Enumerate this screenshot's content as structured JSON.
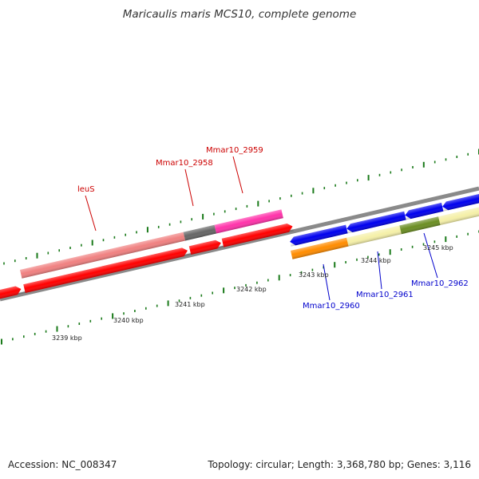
{
  "title": "Maricaulis maris MCS10, complete genome",
  "footer": {
    "accession": "Accession: NC_008347",
    "topology": "Topology: circular; Length: 3,368,780 bp; Genes: 3,116"
  },
  "scale_labels": [
    "3239 kbp",
    "3240 kbp",
    "3241 kbp",
    "3242 kbp",
    "3243 kbp",
    "3244 kbp",
    "3245 kbp"
  ],
  "gene_labels": {
    "leuS": "leuS",
    "mmar10_2958": "Mmar10_2958",
    "mmar10_2959": "Mmar10_2959",
    "mmar10_2960": "Mmar10_2960",
    "mmar10_2961": "Mmar10_2961",
    "mmar10_2962": "Mmar10_2962"
  },
  "colors": {
    "forward_label": "#cc0000",
    "reverse_label": "#0000cc",
    "backbone": "#888888",
    "tick": "#1a7a1a",
    "cds_forward": "#ff0000",
    "cds_reverse": "#0000ee",
    "leuS": "#f08080",
    "mmar10_2958": "#666666",
    "mmar10_2959": "#ff33aa",
    "mmar10_2960": "#ff8c00",
    "mmar10_2961": "#f5f0a8",
    "mmar10_2962": "#6b8e23"
  }
}
